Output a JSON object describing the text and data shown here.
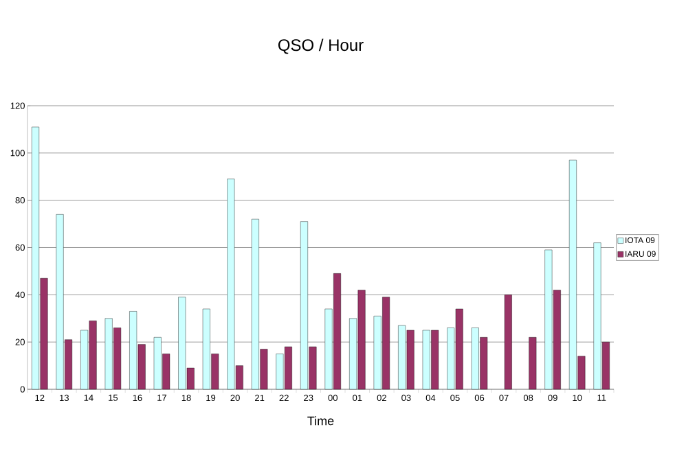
{
  "chart_data": {
    "type": "bar",
    "title": "QSO / Hour",
    "xlabel": "Time",
    "categories": [
      "12",
      "13",
      "14",
      "15",
      "16",
      "17",
      "18",
      "19",
      "20",
      "21",
      "22",
      "23",
      "00",
      "01",
      "02",
      "03",
      "04",
      "05",
      "06",
      "07",
      "08",
      "09",
      "10",
      "11"
    ],
    "series": [
      {
        "name": "IOTA 09",
        "color": "#ccffff",
        "values": [
          111,
          74,
          25,
          30,
          33,
          22,
          39,
          34,
          89,
          72,
          15,
          71,
          34,
          30,
          31,
          27,
          25,
          26,
          26,
          null,
          null,
          59,
          97,
          62
        ]
      },
      {
        "name": "IARU 09",
        "color": "#993366",
        "values": [
          47,
          21,
          29,
          26,
          19,
          15,
          9,
          15,
          10,
          17,
          18,
          18,
          49,
          42,
          39,
          25,
          25,
          34,
          22,
          40,
          22,
          42,
          14,
          20
        ]
      }
    ],
    "ylim": [
      0,
      120
    ],
    "yticks": [
      0,
      20,
      40,
      60,
      80,
      100,
      120
    ],
    "grid": "y",
    "legend": "right"
  }
}
